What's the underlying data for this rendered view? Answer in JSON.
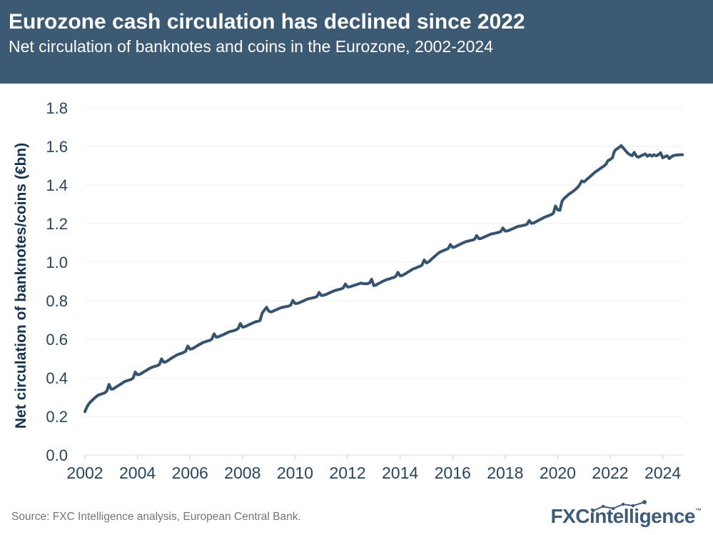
{
  "header": {
    "title": "Eurozone cash circulation has declined since 2022",
    "subtitle": "Net circulation of banknotes and coins in the Eurozone, 2002-2024"
  },
  "footer": {
    "source": "Source: FXC Intelligence analysis, European Central Bank.",
    "logo_text_1": "FXC",
    "logo_text_2": "intelligence",
    "logo_tm": "™"
  },
  "colors": {
    "header_bg": "#3D5A74",
    "header_text": "#FFFFFF",
    "line": "#35536F",
    "grid": "#EDEDED",
    "axis_line": "#E0E0E0",
    "tick_mark": "#D9D9D9",
    "tick_text": "#27455F",
    "axis_title": "#16344F",
    "source_text": "#757575",
    "logo": "#3E5C78"
  },
  "chart_data": {
    "type": "line",
    "title": "Eurozone cash circulation has declined since 2022",
    "subtitle": "Net circulation of banknotes and coins in the Eurozone, 2002-2024",
    "xlabel": "",
    "ylabel": "Net circulation of banknotes/coins (€bn)",
    "ylim": [
      0.0,
      1.8
    ],
    "xlim": [
      2002,
      2025
    ],
    "grid": "horizontal",
    "legend_position": "none",
    "y_ticks": [
      "0.0",
      "0.2",
      "0.4",
      "0.6",
      "0.8",
      "1.0",
      "1.2",
      "1.4",
      "1.6",
      "1.8"
    ],
    "x_ticks": [
      "2002",
      "2004",
      "2006",
      "2008",
      "2010",
      "2012",
      "2014",
      "2016",
      "2018",
      "2020",
      "2022",
      "2024"
    ],
    "series": [
      {
        "name": "Net circulation of banknotes and coins (€bn)",
        "frequency": "monthly",
        "start_year": 2002,
        "start_month": 1,
        "end_year": 2024,
        "end_month": 10,
        "values": [
          0.225,
          0.252,
          0.268,
          0.28,
          0.291,
          0.301,
          0.31,
          0.314,
          0.318,
          0.322,
          0.332,
          0.366,
          0.341,
          0.343,
          0.351,
          0.358,
          0.365,
          0.372,
          0.38,
          0.384,
          0.388,
          0.391,
          0.399,
          0.43,
          0.416,
          0.418,
          0.424,
          0.432,
          0.438,
          0.445,
          0.452,
          0.456,
          0.46,
          0.463,
          0.469,
          0.498,
          0.481,
          0.483,
          0.49,
          0.498,
          0.505,
          0.512,
          0.519,
          0.523,
          0.527,
          0.531,
          0.538,
          0.565,
          0.549,
          0.551,
          0.557,
          0.564,
          0.571,
          0.577,
          0.584,
          0.587,
          0.591,
          0.594,
          0.601,
          0.628,
          0.611,
          0.613,
          0.618,
          0.623,
          0.628,
          0.634,
          0.639,
          0.642,
          0.645,
          0.649,
          0.656,
          0.682,
          0.663,
          0.665,
          0.67,
          0.676,
          0.681,
          0.686,
          0.691,
          0.693,
          0.697,
          0.736,
          0.752,
          0.766,
          0.746,
          0.742,
          0.746,
          0.751,
          0.756,
          0.761,
          0.765,
          0.767,
          0.77,
          0.772,
          0.777,
          0.801,
          0.786,
          0.786,
          0.79,
          0.795,
          0.8,
          0.805,
          0.81,
          0.812,
          0.815,
          0.817,
          0.822,
          0.843,
          0.827,
          0.828,
          0.832,
          0.837,
          0.842,
          0.847,
          0.852,
          0.855,
          0.858,
          0.861,
          0.866,
          0.887,
          0.871,
          0.872,
          0.876,
          0.88,
          0.883,
          0.887,
          0.891,
          0.889,
          0.888,
          0.888,
          0.892,
          0.911,
          0.878,
          0.881,
          0.888,
          0.894,
          0.9,
          0.905,
          0.91,
          0.913,
          0.917,
          0.92,
          0.926,
          0.947,
          0.929,
          0.931,
          0.937,
          0.944,
          0.951,
          0.958,
          0.965,
          0.969,
          0.974,
          0.978,
          0.985,
          1.011,
          0.996,
          1.001,
          1.011,
          1.022,
          1.032,
          1.042,
          1.051,
          1.056,
          1.061,
          1.065,
          1.071,
          1.091,
          1.076,
          1.079,
          1.085,
          1.09,
          1.096,
          1.101,
          1.106,
          1.109,
          1.112,
          1.114,
          1.119,
          1.138,
          1.121,
          1.123,
          1.128,
          1.133,
          1.138,
          1.143,
          1.147,
          1.149,
          1.152,
          1.154,
          1.159,
          1.177,
          1.161,
          1.162,
          1.166,
          1.171,
          1.176,
          1.181,
          1.186,
          1.187,
          1.19,
          1.192,
          1.197,
          1.216,
          1.201,
          1.203,
          1.209,
          1.215,
          1.221,
          1.227,
          1.233,
          1.237,
          1.242,
          1.246,
          1.253,
          1.291,
          1.271,
          1.269,
          1.316,
          1.331,
          1.341,
          1.351,
          1.359,
          1.367,
          1.376,
          1.386,
          1.401,
          1.421,
          1.416,
          1.426,
          1.436,
          1.446,
          1.456,
          1.466,
          1.474,
          1.482,
          1.49,
          1.497,
          1.507,
          1.527,
          1.532,
          1.542,
          1.577,
          1.587,
          1.594,
          1.604,
          1.592,
          1.578,
          1.565,
          1.557,
          1.552,
          1.569,
          1.549,
          1.544,
          1.551,
          1.556,
          1.561,
          1.549,
          1.557,
          1.55,
          1.557,
          1.551,
          1.557,
          1.567,
          1.541,
          1.547,
          1.552,
          1.537,
          1.547,
          1.553,
          1.555,
          1.556,
          1.557,
          1.557
        ]
      }
    ]
  }
}
